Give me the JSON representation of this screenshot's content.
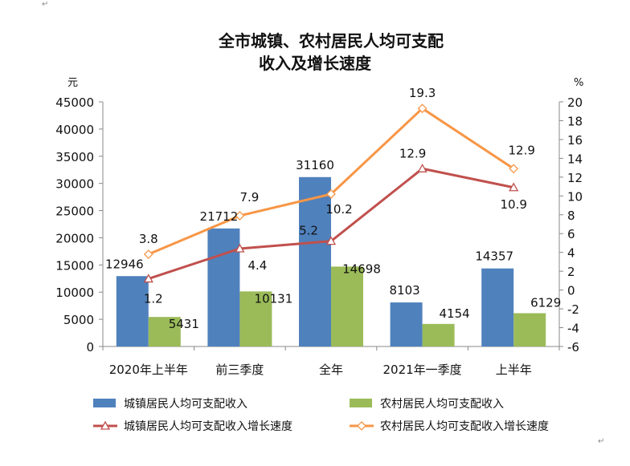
{
  "chart_data": {
    "type": "bar+line",
    "title_lines": [
      "全市城镇、农村居民人均可支配",
      "收入及增长速度"
    ],
    "y_left_unit": "元",
    "y_right_unit": "%",
    "y_left_range": [
      0,
      45000
    ],
    "y_left_step": 5000,
    "y_right_range": [
      -6,
      20
    ],
    "y_right_step": 2,
    "categories": [
      "2020年上半年",
      "前三季度",
      "全年",
      "2021年一季度",
      "上半年"
    ],
    "bar_series": [
      {
        "name": "城镇居民人均可支配收入",
        "color": "#4F81BD",
        "values": [
          12946,
          21712,
          31160,
          8103,
          14357
        ]
      },
      {
        "name": "农村居民人均可支配收入",
        "color": "#9BBB59",
        "values": [
          5431,
          10131,
          14698,
          4154,
          6129
        ]
      }
    ],
    "line_series": [
      {
        "name": "城镇居民人均可支配收入增长速度",
        "color": "#C0504D",
        "marker": "triangle",
        "values": [
          1.2,
          4.4,
          5.2,
          12.9,
          10.9
        ]
      },
      {
        "name": "农村居民人均可支配收入增长速度",
        "color": "#F79646",
        "marker": "diamond",
        "values": [
          3.8,
          7.9,
          10.2,
          19.3,
          12.9
        ]
      }
    ],
    "grid": false,
    "legend_position": "bottom"
  },
  "decor": {
    "mark_glyph": "↵"
  }
}
